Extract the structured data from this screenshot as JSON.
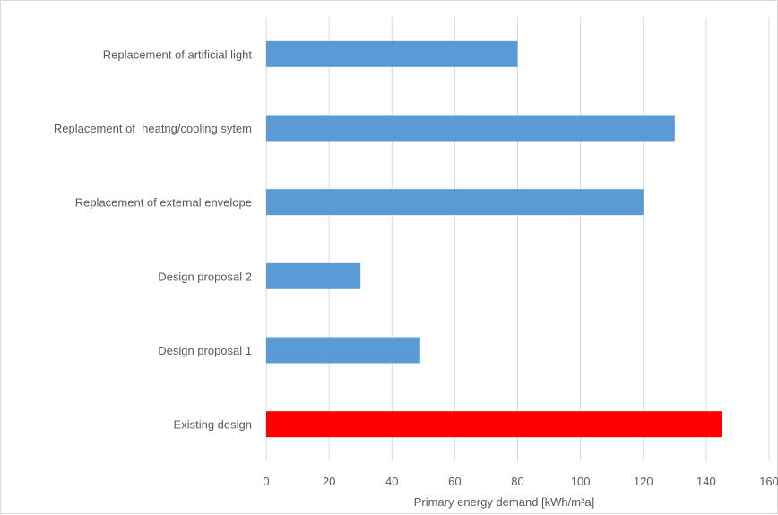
{
  "chart_data": {
    "type": "bar",
    "orientation": "horizontal",
    "categories": [
      "Existing design",
      "Design proposal 1",
      "Design proposal 2",
      "Replacement of external envelope",
      "Replacement of  heatng/cooling sytem",
      "Replacement of artificial light"
    ],
    "values": [
      145,
      49,
      30,
      120,
      130,
      80
    ],
    "bar_colors": [
      "#ff0000",
      "#5b9bd5",
      "#5b9bd5",
      "#5b9bd5",
      "#5b9bd5",
      "#5b9bd5"
    ],
    "xlabel": "Primary energy demand [kWh/m²a]",
    "ylabel": "",
    "xlim": [
      0,
      160
    ],
    "xticks": [
      "0",
      "20",
      "40",
      "60",
      "80",
      "100",
      "120",
      "140",
      "160"
    ],
    "grid": "vertical",
    "legend": "none"
  }
}
